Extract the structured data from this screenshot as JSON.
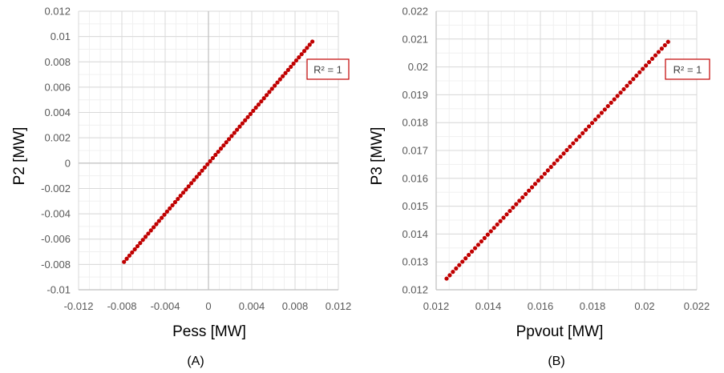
{
  "figure": {
    "panels": [
      {
        "label": "(A)",
        "r2_label": "R² = 1"
      },
      {
        "label": "(B)",
        "r2_label": "R² = 1"
      }
    ]
  },
  "colors": {
    "series": "#c00000",
    "grid_major": "#d9d9d9",
    "grid_minor": "#f0f0f0",
    "axis": "#bfbfbf",
    "annotation_border": "#c00000"
  },
  "chart_data": [
    {
      "type": "scatter",
      "xlabel": "Pess [MW]",
      "ylabel": "P2 [MW]",
      "xlim": [
        -0.012,
        0.012
      ],
      "ylim": [
        -0.01,
        0.012
      ],
      "x_ticks": [
        "-0.012",
        "-0.008",
        "-0.004",
        "0",
        "0.004",
        "0.008",
        "0.012"
      ],
      "y_ticks": [
        "-0.01",
        "-0.008",
        "-0.006",
        "-0.004",
        "-0.002",
        "0",
        "0.002",
        "0.004",
        "0.006",
        "0.008",
        "0.01",
        "0.012"
      ],
      "grid": true,
      "annotations": [
        "R² = 1"
      ],
      "series": [
        {
          "x_range": [
            -0.0078,
            0.0096
          ],
          "y_range": [
            -0.0078,
            0.0096
          ],
          "relation": "y = x"
        }
      ]
    },
    {
      "type": "scatter",
      "xlabel": "Ppvout [MW]",
      "ylabel": "P3 [MW]",
      "xlim": [
        0.012,
        0.022
      ],
      "ylim": [
        0.012,
        0.022
      ],
      "x_ticks": [
        "0.012",
        "0.014",
        "0.016",
        "0.018",
        "0.02",
        "0.022"
      ],
      "y_ticks": [
        "0.012",
        "0.013",
        "0.014",
        "0.015",
        "0.016",
        "0.017",
        "0.018",
        "0.019",
        "0.02",
        "0.021",
        "0.022"
      ],
      "grid": true,
      "annotations": [
        "R² = 1"
      ],
      "series": [
        {
          "x_range": [
            0.0124,
            0.0209
          ],
          "y_range": [
            0.0124,
            0.0209
          ],
          "relation": "y = x"
        }
      ]
    }
  ]
}
